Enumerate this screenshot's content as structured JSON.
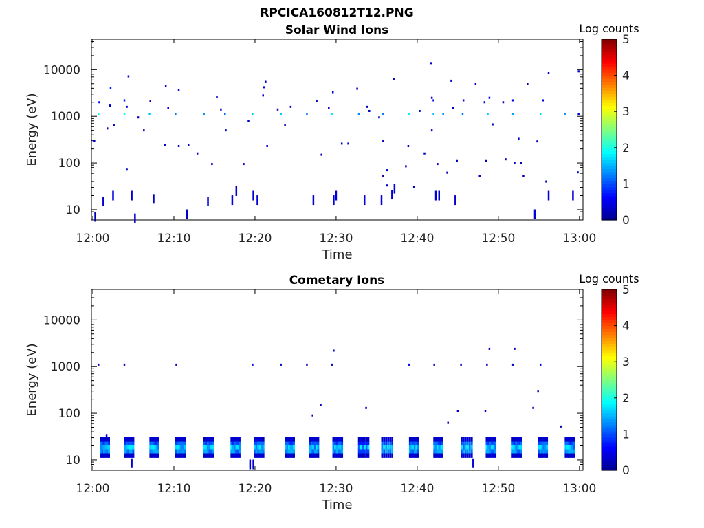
{
  "figure_title": "RPCICA160812T12.PNG",
  "colormap": [
    "#00008f",
    "#0000ff",
    "#0080ff",
    "#00ffff",
    "#80ff80",
    "#ffff00",
    "#ff8000",
    "#ff0000",
    "#800000"
  ],
  "chart_data": [
    {
      "type": "heatmap",
      "title": "Solar Wind Ions",
      "xlabel": "Time",
      "ylabel": "Energy (eV)",
      "x_ticks": [
        "12:00",
        "12:10",
        "12:20",
        "12:30",
        "12:40",
        "12:50",
        "13:00"
      ],
      "xlim_minutes": [
        0,
        60
      ],
      "y_scale": "log",
      "y_ticks": [
        "10",
        "100",
        "1000",
        "10000"
      ],
      "ylim": [
        6,
        45000
      ],
      "colorbar": {
        "label": "Log counts",
        "ticks": [
          "0",
          "1",
          "2",
          "3",
          "4",
          "5"
        ],
        "range": [
          0,
          5
        ]
      },
      "points": [
        {
          "t": 0.3,
          "e": 7,
          "c": 0.2
        },
        {
          "t": 0.2,
          "e": 300,
          "c": 0.3
        },
        {
          "t": 0.8,
          "e": 2000,
          "c": 0.6
        },
        {
          "t": 0.7,
          "e": 1100,
          "c": 1.8
        },
        {
          "t": 1.3,
          "e": 15,
          "c": 0.4
        },
        {
          "t": 1.8,
          "e": 550,
          "c": 0.3
        },
        {
          "t": 2.1,
          "e": 1700,
          "c": 0.4
        },
        {
          "t": 2.2,
          "e": 4000,
          "c": 0.8
        },
        {
          "t": 2.5,
          "e": 20,
          "c": 0.5
        },
        {
          "t": 2.6,
          "e": 650,
          "c": 0.3
        },
        {
          "t": 3.9,
          "e": 1100,
          "c": 1.9
        },
        {
          "t": 3.9,
          "e": 2200,
          "c": 0.7
        },
        {
          "t": 4.2,
          "e": 1600,
          "c": 0.5
        },
        {
          "t": 4.2,
          "e": 72,
          "c": 0.3
        },
        {
          "t": 4.4,
          "e": 7200,
          "c": 0.4
        },
        {
          "t": 4.8,
          "e": 20,
          "c": 0.4
        },
        {
          "t": 5.2,
          "e": 6.5,
          "c": 0.4
        },
        {
          "t": 5.6,
          "e": 950,
          "c": 0.3
        },
        {
          "t": 6.3,
          "e": 500,
          "c": 0.3
        },
        {
          "t": 7.0,
          "e": 1100,
          "c": 1.6
        },
        {
          "t": 7.1,
          "e": 2100,
          "c": 0.4
        },
        {
          "t": 7.5,
          "e": 17,
          "c": 0.3
        },
        {
          "t": 8.9,
          "e": 240,
          "c": 0.3
        },
        {
          "t": 9.0,
          "e": 4500,
          "c": 0.3
        },
        {
          "t": 9.3,
          "e": 1500,
          "c": 0.4
        },
        {
          "t": 10.2,
          "e": 1100,
          "c": 1.2
        },
        {
          "t": 10.6,
          "e": 3600,
          "c": 0.3
        },
        {
          "t": 10.6,
          "e": 230,
          "c": 0.3
        },
        {
          "t": 11.6,
          "e": 8,
          "c": 0.3
        },
        {
          "t": 11.8,
          "e": 240,
          "c": 0.3
        },
        {
          "t": 12.9,
          "e": 160,
          "c": 0.3
        },
        {
          "t": 13.7,
          "e": 1100,
          "c": 1.3
        },
        {
          "t": 14.2,
          "e": 15,
          "c": 0.4
        },
        {
          "t": 14.7,
          "e": 95,
          "c": 0.3
        },
        {
          "t": 15.3,
          "e": 2600,
          "c": 0.3
        },
        {
          "t": 15.8,
          "e": 1400,
          "c": 0.3
        },
        {
          "t": 16.3,
          "e": 1100,
          "c": 1.1
        },
        {
          "t": 16.4,
          "e": 500,
          "c": 0.3
        },
        {
          "t": 17.2,
          "e": 16,
          "c": 0.4
        },
        {
          "t": 17.7,
          "e": 25,
          "c": 0.3
        },
        {
          "t": 18.6,
          "e": 95,
          "c": 0.3
        },
        {
          "t": 19.2,
          "e": 800,
          "c": 0.3
        },
        {
          "t": 19.7,
          "e": 1100,
          "c": 1.6
        },
        {
          "t": 19.8,
          "e": 20,
          "c": 0.4
        },
        {
          "t": 20.3,
          "e": 16,
          "c": 0.4
        },
        {
          "t": 21.0,
          "e": 2800,
          "c": 0.3
        },
        {
          "t": 21.1,
          "e": 4200,
          "c": 0.4
        },
        {
          "t": 21.3,
          "e": 5500,
          "c": 0.3
        },
        {
          "t": 21.5,
          "e": 230,
          "c": 0.3
        },
        {
          "t": 22.8,
          "e": 1400,
          "c": 0.3
        },
        {
          "t": 23.2,
          "e": 1100,
          "c": 1.6
        },
        {
          "t": 23.7,
          "e": 640,
          "c": 0.3
        },
        {
          "t": 24.4,
          "e": 1600,
          "c": 0.3
        },
        {
          "t": 26.4,
          "e": 1100,
          "c": 1.2
        },
        {
          "t": 27.2,
          "e": 16,
          "c": 0.4
        },
        {
          "t": 27.6,
          "e": 2100,
          "c": 0.3
        },
        {
          "t": 28.2,
          "e": 150,
          "c": 0.3
        },
        {
          "t": 29.1,
          "e": 1500,
          "c": 0.3
        },
        {
          "t": 29.5,
          "e": 1100,
          "c": 1.8
        },
        {
          "t": 29.6,
          "e": 3300,
          "c": 0.4
        },
        {
          "t": 29.7,
          "e": 16,
          "c": 0.4
        },
        {
          "t": 30.0,
          "e": 20,
          "c": 0.4
        },
        {
          "t": 30.7,
          "e": 260,
          "c": 0.3
        },
        {
          "t": 31.5,
          "e": 260,
          "c": 0.3
        },
        {
          "t": 32.6,
          "e": 3900,
          "c": 0.3
        },
        {
          "t": 32.8,
          "e": 1100,
          "c": 1.3
        },
        {
          "t": 33.5,
          "e": 16,
          "c": 0.4
        },
        {
          "t": 33.8,
          "e": 1600,
          "c": 0.3
        },
        {
          "t": 34.1,
          "e": 1300,
          "c": 0.3
        },
        {
          "t": 35.3,
          "e": 950,
          "c": 0.3
        },
        {
          "t": 35.6,
          "e": 16,
          "c": 0.4
        },
        {
          "t": 35.8,
          "e": 1100,
          "c": 1.2
        },
        {
          "t": 35.8,
          "e": 300,
          "c": 0.3
        },
        {
          "t": 35.8,
          "e": 52,
          "c": 0.3
        },
        {
          "t": 36.3,
          "e": 33,
          "c": 0.3
        },
        {
          "t": 36.3,
          "e": 70,
          "c": 0.3
        },
        {
          "t": 36.9,
          "e": 21,
          "c": 0.4
        },
        {
          "t": 37.1,
          "e": 6200,
          "c": 0.3
        },
        {
          "t": 37.2,
          "e": 28,
          "c": 0.4
        },
        {
          "t": 38.6,
          "e": 85,
          "c": 0.3
        },
        {
          "t": 38.9,
          "e": 230,
          "c": 0.3
        },
        {
          "t": 39.0,
          "e": 1100,
          "c": 1.8
        },
        {
          "t": 39.6,
          "e": 31,
          "c": 0.3
        },
        {
          "t": 40.3,
          "e": 1300,
          "c": 0.3
        },
        {
          "t": 40.9,
          "e": 160,
          "c": 0.3
        },
        {
          "t": 41.7,
          "e": 13800,
          "c": 0.3
        },
        {
          "t": 41.8,
          "e": 2500,
          "c": 0.4
        },
        {
          "t": 42.0,
          "e": 1100,
          "c": 1.6
        },
        {
          "t": 41.8,
          "e": 500,
          "c": 0.3
        },
        {
          "t": 42.0,
          "e": 2200,
          "c": 0.6
        },
        {
          "t": 42.3,
          "e": 20,
          "c": 0.4
        },
        {
          "t": 42.5,
          "e": 95,
          "c": 0.3
        },
        {
          "t": 42.7,
          "e": 20,
          "c": 0.4
        },
        {
          "t": 43.2,
          "e": 1100,
          "c": 1.3
        },
        {
          "t": 43.7,
          "e": 62,
          "c": 0.3
        },
        {
          "t": 44.2,
          "e": 5800,
          "c": 0.3
        },
        {
          "t": 44.4,
          "e": 1500,
          "c": 0.3
        },
        {
          "t": 44.7,
          "e": 16,
          "c": 0.4
        },
        {
          "t": 44.9,
          "e": 110,
          "c": 0.3
        },
        {
          "t": 45.7,
          "e": 2200,
          "c": 0.6
        },
        {
          "t": 45.6,
          "e": 1100,
          "c": 1.2
        },
        {
          "t": 47.2,
          "e": 4900,
          "c": 0.3
        },
        {
          "t": 47.7,
          "e": 53,
          "c": 0.3
        },
        {
          "t": 48.3,
          "e": 2000,
          "c": 0.4
        },
        {
          "t": 48.5,
          "e": 110,
          "c": 0.3
        },
        {
          "t": 48.7,
          "e": 1100,
          "c": 1.6
        },
        {
          "t": 48.9,
          "e": 2500,
          "c": 0.6
        },
        {
          "t": 49.3,
          "e": 670,
          "c": 0.3
        },
        {
          "t": 50.6,
          "e": 2000,
          "c": 0.3
        },
        {
          "t": 50.9,
          "e": 120,
          "c": 0.3
        },
        {
          "t": 51.8,
          "e": 1100,
          "c": 1.4
        },
        {
          "t": 51.8,
          "e": 2200,
          "c": 0.5
        },
        {
          "t": 52.0,
          "e": 100,
          "c": 0.3
        },
        {
          "t": 52.5,
          "e": 330,
          "c": 0.3
        },
        {
          "t": 52.8,
          "e": 100,
          "c": 0.3
        },
        {
          "t": 53.1,
          "e": 53,
          "c": 0.3
        },
        {
          "t": 53.6,
          "e": 4900,
          "c": 0.3
        },
        {
          "t": 54.5,
          "e": 8,
          "c": 0.4
        },
        {
          "t": 54.8,
          "e": 290,
          "c": 0.3
        },
        {
          "t": 55.2,
          "e": 1100,
          "c": 1.7
        },
        {
          "t": 55.5,
          "e": 2200,
          "c": 0.5
        },
        {
          "t": 55.9,
          "e": 40,
          "c": 0.3
        },
        {
          "t": 56.2,
          "e": 20,
          "c": 0.4
        },
        {
          "t": 56.2,
          "e": 8500,
          "c": 0.3
        },
        {
          "t": 58.2,
          "e": 1100,
          "c": 1.3
        },
        {
          "t": 59.2,
          "e": 20,
          "c": 0.4
        },
        {
          "t": 59.9,
          "e": 9200,
          "c": 0.3
        },
        {
          "t": 59.8,
          "e": 63,
          "c": 0.3
        },
        {
          "t": 59.9,
          "e": 1100,
          "c": 0.4
        }
      ]
    },
    {
      "type": "heatmap",
      "title": "Cometary Ions",
      "xlabel": "Time",
      "ylabel": "Energy (eV)",
      "x_ticks": [
        "12:00",
        "12:10",
        "12:20",
        "12:30",
        "12:40",
        "12:50",
        "13:00"
      ],
      "xlim_minutes": [
        0,
        60
      ],
      "y_scale": "log",
      "y_ticks": [
        "10",
        "100",
        "1000",
        "10000"
      ],
      "ylim": [
        6,
        45000
      ],
      "colorbar": {
        "label": "Log counts",
        "ticks": [
          "0",
          "1",
          "2",
          "3",
          "4",
          "5"
        ],
        "range": [
          0,
          5
        ]
      },
      "band_energies": [
        12.5,
        15.5,
        19,
        23,
        27.5
      ],
      "band_centers_minutes": [
        1.5,
        4.5,
        7.6,
        10.8,
        14.3,
        17.6,
        20.5,
        24.3,
        27.3,
        30.2,
        33.4,
        36.3,
        39.6,
        42.6,
        46.1,
        49.1,
        52.3,
        55.5,
        58.8
      ],
      "band_widths_minutes": [
        1.2,
        1.2,
        1.2,
        1.3,
        1.3,
        1.2,
        1.3,
        1.2,
        1.2,
        1.3,
        1.4,
        1.5,
        1.2,
        1.2,
        1.5,
        1.3,
        1.3,
        1.2,
        1.2
      ],
      "points": [
        {
          "t": 0.7,
          "e": 1100,
          "c": 0.3
        },
        {
          "t": 1.7,
          "e": 33,
          "c": 0.3
        },
        {
          "t": 3.9,
          "e": 1100,
          "c": 0.3
        },
        {
          "t": 10.3,
          "e": 1100,
          "c": 0.3
        },
        {
          "t": 19.7,
          "e": 1100,
          "c": 0.5
        },
        {
          "t": 23.2,
          "e": 1100,
          "c": 0.3
        },
        {
          "t": 26.4,
          "e": 1100,
          "c": 0.3
        },
        {
          "t": 27.1,
          "e": 90,
          "c": 0.3
        },
        {
          "t": 28.1,
          "e": 150,
          "c": 0.3
        },
        {
          "t": 29.5,
          "e": 1100,
          "c": 0.3
        },
        {
          "t": 29.7,
          "e": 2200,
          "c": 0.3
        },
        {
          "t": 33.7,
          "e": 130,
          "c": 0.3
        },
        {
          "t": 39.0,
          "e": 1100,
          "c": 0.5
        },
        {
          "t": 42.1,
          "e": 1100,
          "c": 0.3
        },
        {
          "t": 43.8,
          "e": 62,
          "c": 0.3
        },
        {
          "t": 45.0,
          "e": 110,
          "c": 0.3
        },
        {
          "t": 45.4,
          "e": 1100,
          "c": 0.3
        },
        {
          "t": 48.4,
          "e": 110,
          "c": 0.3
        },
        {
          "t": 48.6,
          "e": 1100,
          "c": 0.3
        },
        {
          "t": 48.9,
          "e": 2400,
          "c": 0.3
        },
        {
          "t": 51.8,
          "e": 1100,
          "c": 0.3
        },
        {
          "t": 52.0,
          "e": 2400,
          "c": 0.3
        },
        {
          "t": 54.3,
          "e": 130,
          "c": 0.3
        },
        {
          "t": 54.9,
          "e": 300,
          "c": 0.3
        },
        {
          "t": 55.2,
          "e": 1100,
          "c": 0.5
        },
        {
          "t": 57.7,
          "e": 52,
          "c": 0.3
        },
        {
          "t": 4.8,
          "e": 8.5,
          "c": 0.4
        },
        {
          "t": 19.4,
          "e": 8,
          "c": 0.4
        },
        {
          "t": 19.8,
          "e": 8,
          "c": 0.4
        },
        {
          "t": 46.9,
          "e": 8.5,
          "c": 0.4
        }
      ]
    }
  ]
}
